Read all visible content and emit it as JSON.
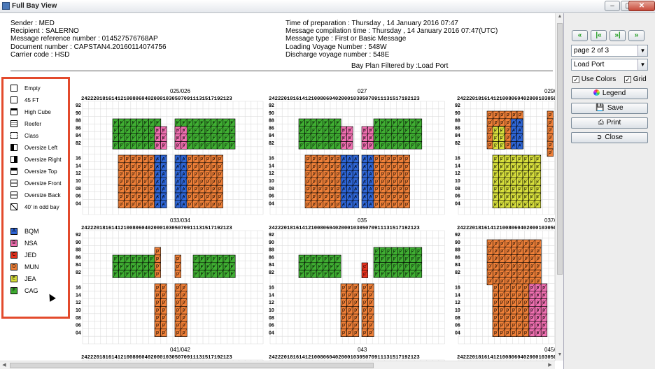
{
  "window": {
    "title": "Full Bay View",
    "minimize": "–",
    "maximize": "▢",
    "close": "✕"
  },
  "header": {
    "left": [
      "Sender : MED",
      "Recipient : SALERNO",
      "Message reference number : 014527576768AP",
      "Document number : CAPSTAN4.20160114074756",
      "Carrier code : HSD"
    ],
    "right": [
      "Time of preparation : Thursday , 14 January 2016  07:47",
      "Message compilation time : Thursday , 14 January 2016 07:47(UTC)",
      "Message type : First or Basic Message",
      "Loading Voyage Number : 548W",
      "Discharge voyage number : 548E"
    ],
    "filter_title": "Bay Plan Filtered by :Load Port"
  },
  "legend": {
    "types": [
      "Empty",
      "45 FT",
      "High Cube",
      "Reefer",
      "Class",
      "Oversize Left",
      "Oversize Right",
      "Oversize Top",
      "Oversize Front",
      "Oversize Back",
      "40' in odd bay"
    ],
    "ports": [
      {
        "code": "A",
        "name": "BQM",
        "color": "#2f66d6"
      },
      {
        "code": "B",
        "name": "NSA",
        "color": "#ef6fb0"
      },
      {
        "code": "C",
        "name": "JED",
        "color": "#e8321e"
      },
      {
        "code": "D",
        "name": "MUN",
        "color": "#f08038"
      },
      {
        "code": "E",
        "name": "JEA",
        "color": "#d7df3c"
      },
      {
        "code": "F",
        "name": "CAG",
        "color": "#3fae32"
      }
    ]
  },
  "bay_grid": {
    "column_header": "24222018161412100806040200010305070911131517192123",
    "rows_deck": [
      "92",
      "90",
      "88",
      "86",
      "84",
      "82"
    ],
    "rows_hold": [
      "16",
      "14",
      "12",
      "10",
      "08",
      "06",
      "04"
    ],
    "bays_row1": [
      "025/026",
      "027",
      "029/"
    ],
    "bays_row2": [
      "033/034",
      "035",
      "037/"
    ],
    "bays_row3": [
      "041/042",
      "043",
      "045/"
    ]
  },
  "controls": {
    "nav": [
      "«",
      "|«",
      "»|",
      "»"
    ],
    "page_select": "page 2 of 3",
    "filter_select": "Load Port",
    "use_colors_label": "Use Colors",
    "grid_label": "Grid",
    "legend_button": "Legend",
    "save_button": "Save",
    "print_button": "Print",
    "close_button": "Close"
  }
}
